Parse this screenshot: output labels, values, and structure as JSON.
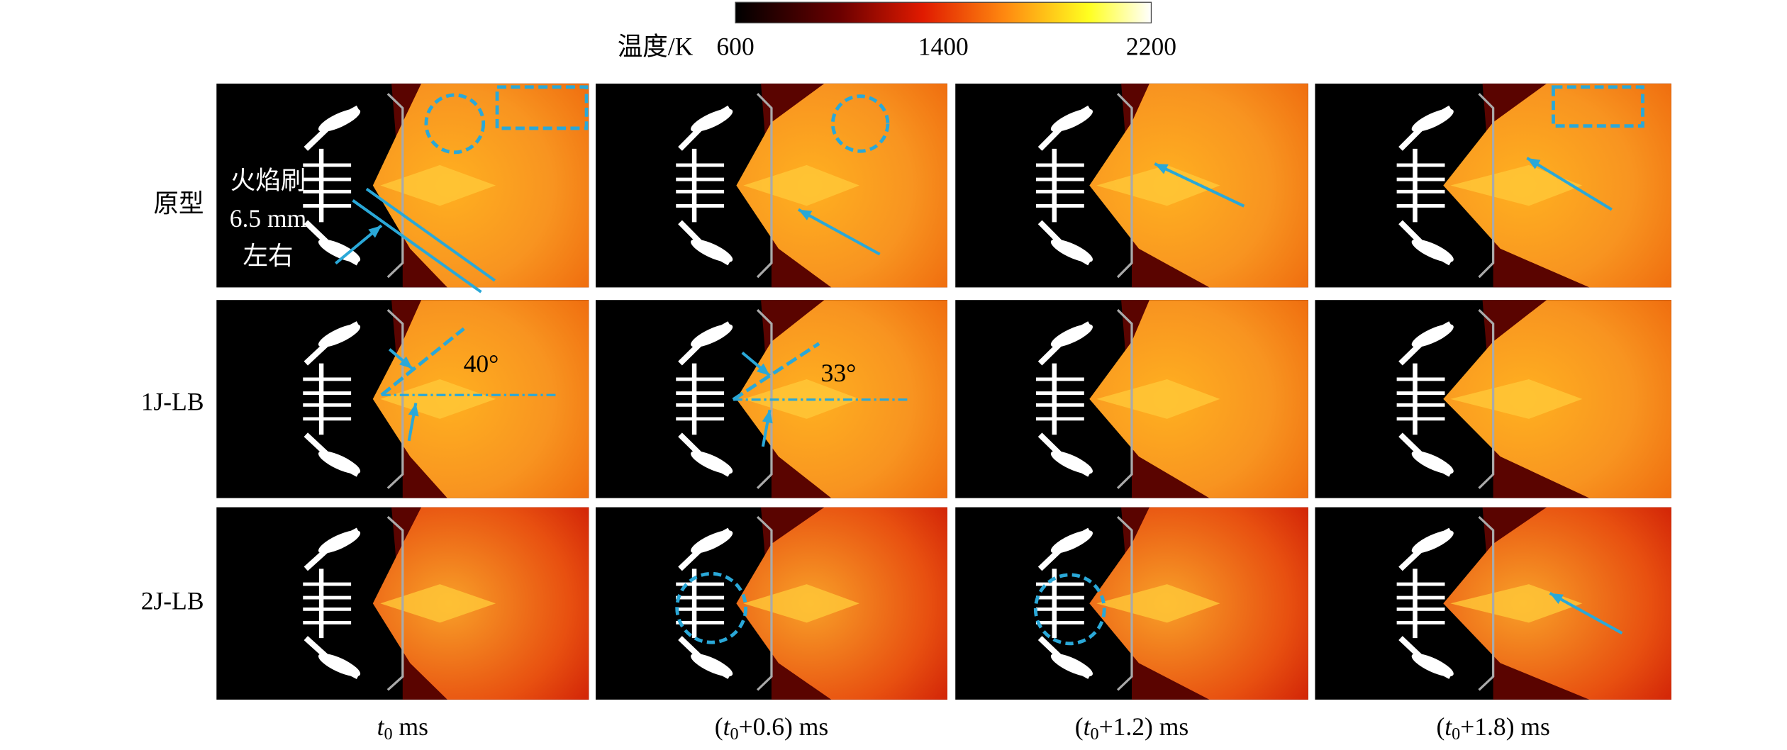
{
  "colorbar": {
    "label": "温度/K",
    "lim": [
      600,
      2200
    ],
    "ticks": [
      600,
      1400,
      2200
    ]
  },
  "rows": [
    "原型",
    "1J-LB",
    "2J-LB"
  ],
  "columns": [
    {
      "var": "t",
      "sub": "0",
      "suffix": " ms"
    },
    {
      "prefix": "(",
      "var": "t",
      "sub": "0",
      "suffix": "+0.6) ms"
    },
    {
      "prefix": "(",
      "var": "t",
      "sub": "0",
      "suffix": "+1.2) ms"
    },
    {
      "prefix": "(",
      "var": "t",
      "sub": "0",
      "suffix": "+1.8) ms"
    }
  ],
  "annotations": {
    "flame_brush": "火焰刷",
    "thickness": "6.5 mm",
    "approx": "左右",
    "angle_1": "40°",
    "angle_2": "33°"
  }
}
